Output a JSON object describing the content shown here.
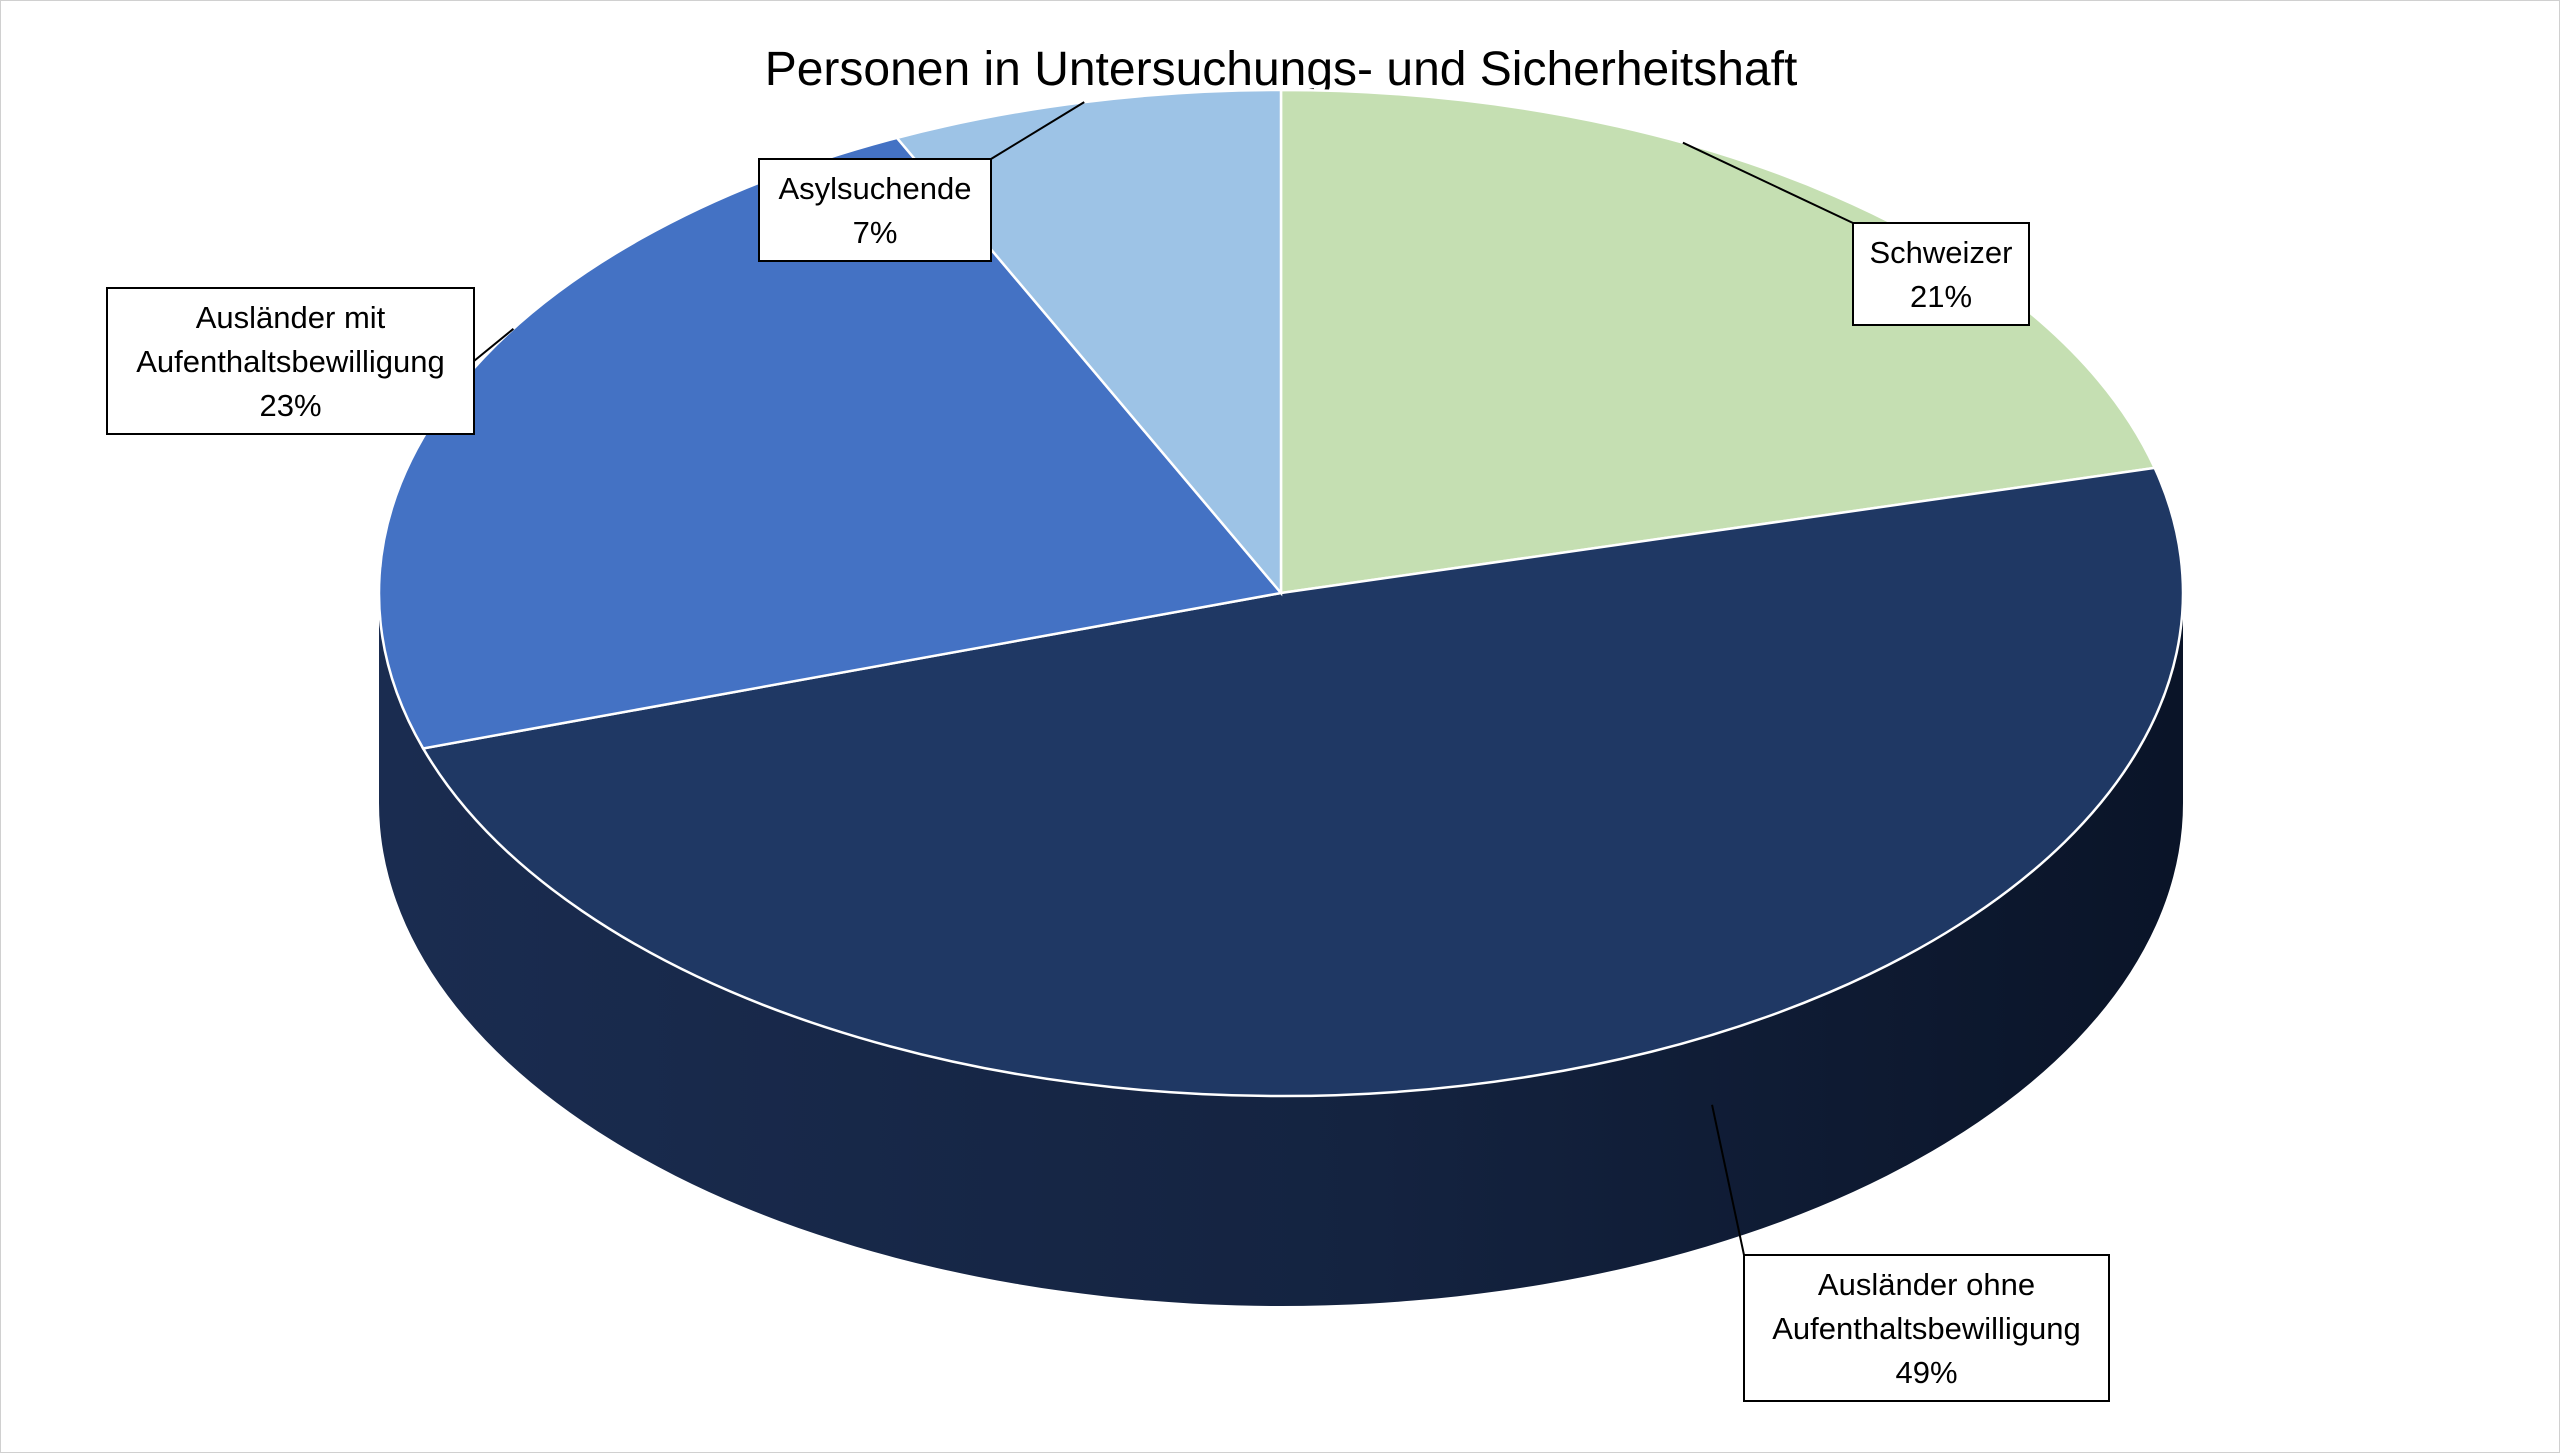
{
  "chart_data": {
    "type": "pie",
    "title": "Personen in Untersuchungs- und Sicherheitshaft",
    "slices": [
      {
        "name": "Schweizer",
        "lines": [
          "Schweizer"
        ],
        "value": 21,
        "label": "21%",
        "color": "#c5dfb2"
      },
      {
        "name": "Ausländer ohne Aufenthaltsbewilligung",
        "lines": [
          "Ausländer ohne",
          "Aufenthaltsbewilligung"
        ],
        "value": 49,
        "label": "49%",
        "color": "#1f3864"
      },
      {
        "name": "Ausländer mit Aufenthaltsbewilligung",
        "lines": [
          "Ausländer mit",
          "Aufenthaltsbewilligung"
        ],
        "value": 23,
        "label": "23%",
        "color": "#4472c4"
      },
      {
        "name": "Asylsuchende",
        "lines": [
          "Asylsuchende"
        ],
        "value": 7,
        "label": "7%",
        "color": "#9dc3e6"
      }
    ],
    "legend": "none",
    "style": "3d",
    "data_labels": "callouts"
  }
}
